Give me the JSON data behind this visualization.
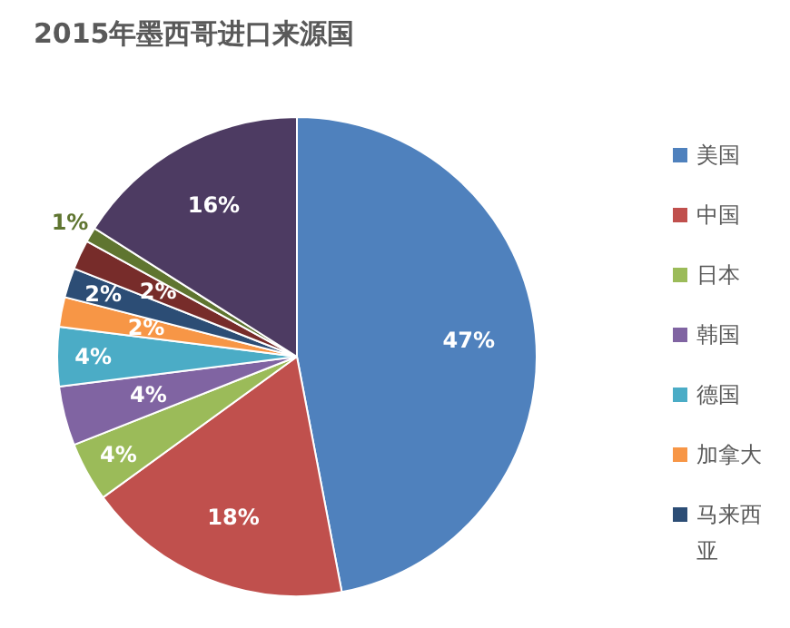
{
  "chart_data": {
    "type": "pie",
    "title": "2015年墨西哥进口来源国",
    "categories": [
      "美国",
      "中国",
      "日本",
      "韩国",
      "德国",
      "加拿大",
      "马来西亚",
      null,
      null,
      null
    ],
    "values": [
      47,
      18,
      4,
      4,
      4,
      2,
      2,
      2,
      1,
      16
    ],
    "colors": [
      "#4f81bd",
      "#c0504d",
      "#9bbb59",
      "#8064a2",
      "#4bacc6",
      "#f79646",
      "#2c4d75",
      "#772c2a",
      "#5f7530",
      "#4d3b62"
    ],
    "value_labels": [
      "47%",
      "18%",
      "4%",
      "4%",
      "4%",
      "2%",
      "2%",
      "2%",
      "1%",
      "16%"
    ],
    "legend": "right"
  }
}
